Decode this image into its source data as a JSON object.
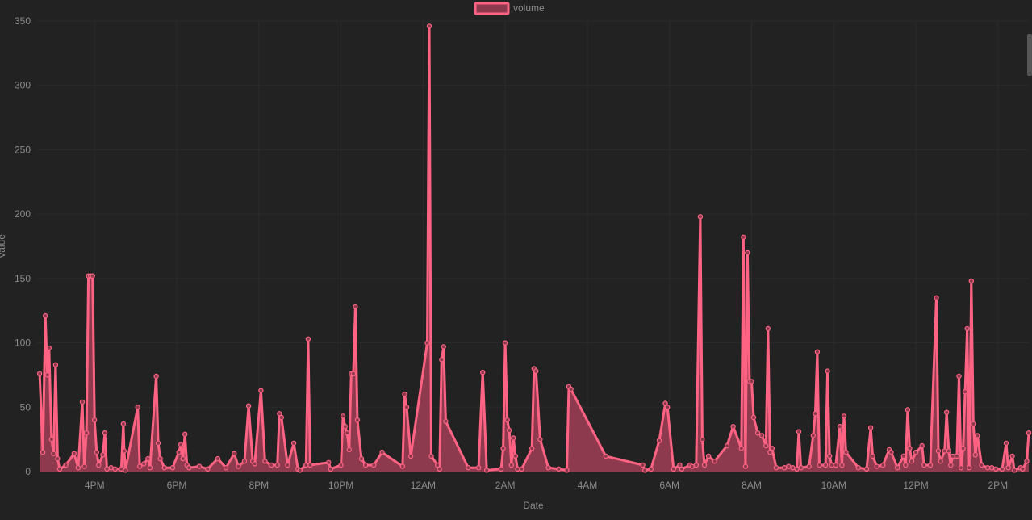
{
  "colors": {
    "background": "#222222",
    "line": "#ff6384",
    "fill": "#8e3a4e",
    "grid": "#2b2b2b",
    "tick_text": "#8a8a8a",
    "axis_title": "#8a8a8a"
  },
  "chart_data": {
    "type": "area",
    "legend": {
      "label": "volume",
      "position": "top-center"
    },
    "xlabel": "Date",
    "ylabel": "Value",
    "ylim": [
      0,
      350
    ],
    "yticks": [
      0,
      50,
      100,
      150,
      200,
      250,
      300,
      350
    ],
    "xlim_hours": [
      14.6,
      38.75
    ],
    "xticks": [
      {
        "label": "4PM",
        "hour": 16
      },
      {
        "label": "6PM",
        "hour": 18
      },
      {
        "label": "8PM",
        "hour": 20
      },
      {
        "label": "10PM",
        "hour": 22
      },
      {
        "label": "12AM",
        "hour": 24
      },
      {
        "label": "2AM",
        "hour": 26
      },
      {
        "label": "4AM",
        "hour": 28
      },
      {
        "label": "6AM",
        "hour": 30
      },
      {
        "label": "8AM",
        "hour": 32
      },
      {
        "label": "10AM",
        "hour": 34
      },
      {
        "label": "12PM",
        "hour": 36
      },
      {
        "label": "2PM",
        "hour": 38
      }
    ],
    "grid": true,
    "series": [
      {
        "name": "volume",
        "points": [
          [
            14.66,
            76
          ],
          [
            14.74,
            15
          ],
          [
            14.8,
            121
          ],
          [
            14.85,
            75
          ],
          [
            14.89,
            96
          ],
          [
            14.95,
            25
          ],
          [
            15.0,
            14
          ],
          [
            15.05,
            83
          ],
          [
            15.1,
            10
          ],
          [
            15.15,
            2
          ],
          [
            15.3,
            5
          ],
          [
            15.5,
            14
          ],
          [
            15.6,
            3
          ],
          [
            15.7,
            54
          ],
          [
            15.75,
            4
          ],
          [
            15.8,
            30
          ],
          [
            15.85,
            152
          ],
          [
            15.9,
            152
          ],
          [
            15.95,
            152
          ],
          [
            16.0,
            40
          ],
          [
            16.05,
            15
          ],
          [
            16.1,
            5
          ],
          [
            16.2,
            13
          ],
          [
            16.25,
            30
          ],
          [
            16.3,
            2
          ],
          [
            16.4,
            3
          ],
          [
            16.5,
            2
          ],
          [
            16.65,
            2
          ],
          [
            16.7,
            37
          ],
          [
            16.72,
            16
          ],
          [
            16.75,
            1
          ],
          [
            17.05,
            50
          ],
          [
            17.1,
            4
          ],
          [
            17.2,
            6
          ],
          [
            17.3,
            10
          ],
          [
            17.35,
            3
          ],
          [
            17.5,
            74
          ],
          [
            17.55,
            22
          ],
          [
            17.6,
            10
          ],
          [
            17.7,
            3
          ],
          [
            17.9,
            3
          ],
          [
            18.05,
            15
          ],
          [
            18.1,
            21
          ],
          [
            18.15,
            10
          ],
          [
            18.2,
            29
          ],
          [
            18.25,
            5
          ],
          [
            18.3,
            3
          ],
          [
            18.55,
            4
          ],
          [
            18.75,
            2
          ],
          [
            19.0,
            10
          ],
          [
            19.2,
            3
          ],
          [
            19.4,
            14
          ],
          [
            19.5,
            4
          ],
          [
            19.65,
            8
          ],
          [
            19.75,
            51
          ],
          [
            19.85,
            8
          ],
          [
            19.9,
            6
          ],
          [
            20.05,
            63
          ],
          [
            20.15,
            8
          ],
          [
            20.3,
            5
          ],
          [
            20.45,
            5
          ],
          [
            20.5,
            45
          ],
          [
            20.55,
            42
          ],
          [
            20.7,
            5
          ],
          [
            20.85,
            22
          ],
          [
            20.95,
            2
          ],
          [
            21.0,
            1
          ],
          [
            21.15,
            5
          ],
          [
            21.2,
            103
          ],
          [
            21.25,
            5
          ],
          [
            21.7,
            7
          ],
          [
            21.75,
            2
          ],
          [
            22.0,
            5
          ],
          [
            22.05,
            43
          ],
          [
            22.1,
            35
          ],
          [
            22.15,
            30
          ],
          [
            22.2,
            17
          ],
          [
            22.25,
            76
          ],
          [
            22.3,
            76
          ],
          [
            22.35,
            128
          ],
          [
            22.4,
            40
          ],
          [
            22.5,
            10
          ],
          [
            22.6,
            5
          ],
          [
            22.8,
            5
          ],
          [
            23.0,
            15
          ],
          [
            23.5,
            4
          ],
          [
            23.55,
            60
          ],
          [
            23.6,
            50
          ],
          [
            23.7,
            12
          ],
          [
            24.1,
            100
          ],
          [
            24.15,
            346
          ],
          [
            24.2,
            12
          ],
          [
            24.35,
            5
          ],
          [
            24.4,
            2
          ],
          [
            24.45,
            87
          ],
          [
            24.5,
            97
          ],
          [
            24.55,
            39
          ],
          [
            25.1,
            3
          ],
          [
            25.35,
            3
          ],
          [
            25.45,
            77
          ],
          [
            25.55,
            1
          ],
          [
            25.9,
            2
          ],
          [
            25.95,
            18
          ],
          [
            26.0,
            100
          ],
          [
            26.05,
            40
          ],
          [
            26.1,
            32
          ],
          [
            26.15,
            5
          ],
          [
            26.2,
            26
          ],
          [
            26.25,
            12
          ],
          [
            26.3,
            2
          ],
          [
            26.4,
            2
          ],
          [
            26.65,
            18
          ],
          [
            26.7,
            80
          ],
          [
            26.75,
            78
          ],
          [
            26.85,
            25
          ],
          [
            27.05,
            3
          ],
          [
            27.3,
            2
          ],
          [
            27.5,
            1
          ],
          [
            27.55,
            66
          ],
          [
            27.6,
            64
          ],
          [
            28.45,
            12
          ],
          [
            29.35,
            5
          ],
          [
            29.4,
            1
          ],
          [
            29.55,
            2
          ],
          [
            29.75,
            24
          ],
          [
            29.9,
            53
          ],
          [
            29.95,
            50
          ],
          [
            30.1,
            2
          ],
          [
            30.25,
            5
          ],
          [
            30.3,
            2
          ],
          [
            30.5,
            5
          ],
          [
            30.55,
            4
          ],
          [
            30.65,
            5
          ],
          [
            30.75,
            198
          ],
          [
            30.8,
            25
          ],
          [
            30.85,
            5
          ],
          [
            30.95,
            12
          ],
          [
            31.1,
            8
          ],
          [
            31.4,
            20
          ],
          [
            31.55,
            35
          ],
          [
            31.75,
            18
          ],
          [
            31.8,
            182
          ],
          [
            31.85,
            4
          ],
          [
            31.9,
            170
          ],
          [
            31.95,
            70
          ],
          [
            32.0,
            70
          ],
          [
            32.05,
            42
          ],
          [
            32.15,
            30
          ],
          [
            32.25,
            28
          ],
          [
            32.35,
            20
          ],
          [
            32.4,
            111
          ],
          [
            32.45,
            15
          ],
          [
            32.5,
            18
          ],
          [
            32.6,
            3
          ],
          [
            32.8,
            3
          ],
          [
            32.9,
            4
          ],
          [
            33.0,
            3
          ],
          [
            33.1,
            2
          ],
          [
            33.15,
            31
          ],
          [
            33.2,
            3
          ],
          [
            33.4,
            4
          ],
          [
            33.5,
            28
          ],
          [
            33.55,
            45
          ],
          [
            33.6,
            93
          ],
          [
            33.65,
            5
          ],
          [
            33.8,
            5
          ],
          [
            33.85,
            78
          ],
          [
            33.9,
            12
          ],
          [
            33.95,
            5
          ],
          [
            34.05,
            5
          ],
          [
            34.15,
            35
          ],
          [
            34.2,
            5
          ],
          [
            34.25,
            43
          ],
          [
            34.3,
            15
          ],
          [
            34.6,
            3
          ],
          [
            34.8,
            2
          ],
          [
            34.9,
            34
          ],
          [
            34.95,
            12
          ],
          [
            35.05,
            4
          ],
          [
            35.2,
            5
          ],
          [
            35.35,
            17
          ],
          [
            35.4,
            15
          ],
          [
            35.55,
            3
          ],
          [
            35.7,
            12
          ],
          [
            35.75,
            5
          ],
          [
            35.8,
            48
          ],
          [
            35.85,
            18
          ],
          [
            35.9,
            8
          ],
          [
            36.0,
            15
          ],
          [
            36.15,
            20
          ],
          [
            36.2,
            5
          ],
          [
            36.35,
            5
          ],
          [
            36.5,
            135
          ],
          [
            36.55,
            16
          ],
          [
            36.6,
            8
          ],
          [
            36.7,
            16
          ],
          [
            36.75,
            46
          ],
          [
            36.8,
            16
          ],
          [
            36.85,
            5
          ],
          [
            36.9,
            12
          ],
          [
            37.0,
            12
          ],
          [
            37.05,
            74
          ],
          [
            37.1,
            3
          ],
          [
            37.15,
            18
          ],
          [
            37.2,
            62
          ],
          [
            37.25,
            111
          ],
          [
            37.3,
            3
          ],
          [
            37.35,
            148
          ],
          [
            37.4,
            37
          ],
          [
            37.45,
            13
          ],
          [
            37.5,
            28
          ],
          [
            37.6,
            5
          ],
          [
            37.75,
            3
          ],
          [
            37.85,
            3
          ],
          [
            37.95,
            2
          ],
          [
            38.1,
            2
          ],
          [
            38.2,
            22
          ],
          [
            38.25,
            3
          ],
          [
            38.35,
            12
          ],
          [
            38.4,
            1
          ],
          [
            38.55,
            3
          ],
          [
            38.6,
            2
          ],
          [
            38.7,
            8
          ],
          [
            38.75,
            30
          ]
        ]
      }
    ]
  }
}
